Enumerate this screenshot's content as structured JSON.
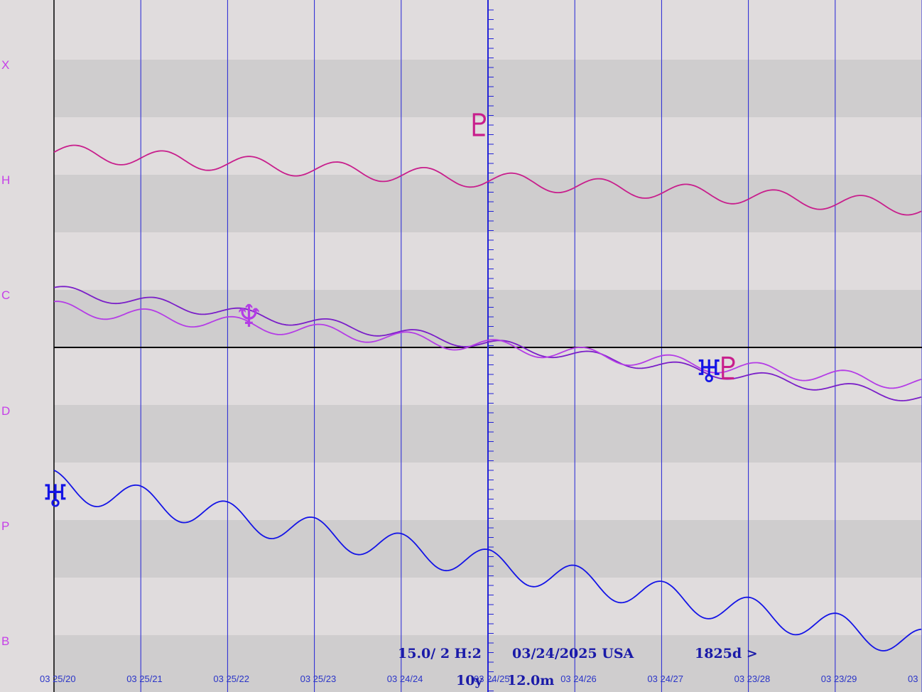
{
  "chart_data": {
    "type": "line",
    "row_labels": [
      "X",
      "H",
      "C",
      "D",
      "P",
      "B"
    ],
    "x_tick_labels": [
      "03 25/20",
      "03 25/21",
      "03 25/22",
      "03 25/23",
      "03 24/24",
      "03 24/25",
      "03 24/26",
      "03 24/27",
      "03 23/28",
      "03 23/29",
      "03"
    ],
    "grid": true,
    "series": [
      {
        "symbol": "♇",
        "color": "#c81e8c",
        "trend": [
          0.22,
          0.3
        ],
        "wave_amplitude": 0.012
      },
      {
        "symbol": "♆",
        "color": "#7a1ec8",
        "trend": [
          0.42,
          0.575
        ],
        "wave_amplitude": 0.008
      },
      {
        "symbol": "♆",
        "color": "#b43ce6",
        "trend": [
          0.445,
          0.555
        ],
        "wave_amplitude": 0.01
      },
      {
        "symbol": "♅",
        "color": "#1414e6",
        "trend": [
          0.7,
          0.93
        ],
        "wave_amplitude": 0.021
      }
    ],
    "markers": [
      {
        "glyph": "♇",
        "color": "#c81e8c",
        "x": 0.52,
        "y": 0.182
      },
      {
        "glyph": "♆",
        "color": "#b43ce6",
        "x": 0.27,
        "y": 0.458
      },
      {
        "glyph": "♅",
        "color": "#1414e6",
        "x": 0.06,
        "y": 0.718
      },
      {
        "glyph": "♅",
        "color": "#1414e6",
        "x": 0.769,
        "y": 0.538
      },
      {
        "glyph": "♇",
        "color": "#c81e8c",
        "x": 0.79,
        "y": 0.534
      }
    ]
  },
  "info": {
    "scale": "15.0/ 2 H:2",
    "date": "03/24/2025 USA",
    "span": "1825d >",
    "years": "10y",
    "months": "12.0m"
  },
  "colors": {
    "background": "#e0dcdd",
    "band": "#cfcdce",
    "grid_line": "#2222d6",
    "axis": "#000000"
  }
}
